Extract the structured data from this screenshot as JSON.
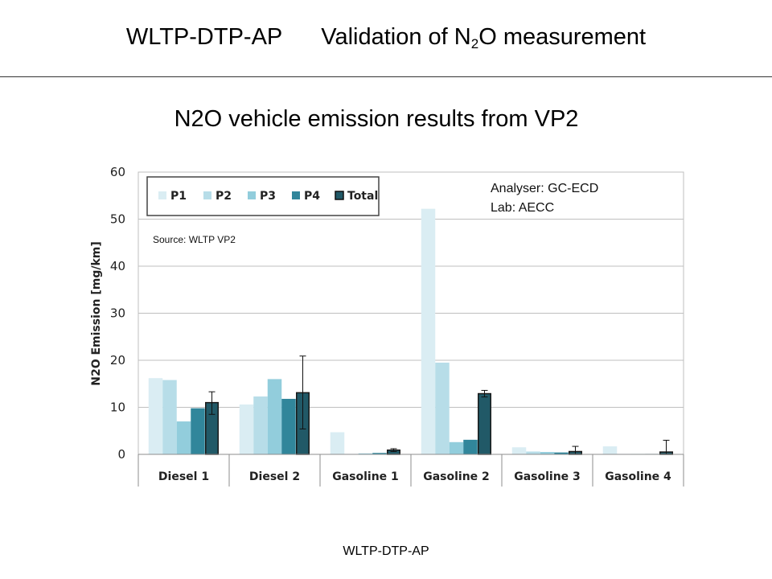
{
  "slide": {
    "title_left": "WLTP-DTP-AP",
    "title_right_pre": "Validation of N",
    "title_right_sub": "2",
    "title_right_post": "O measurement",
    "subtitle": "N2O vehicle emission results from VP2",
    "footer": "WLTP-DTP-AP"
  },
  "chart_data": {
    "type": "bar",
    "ylabel": "N2O Emission [mg/km]",
    "ylim": [
      0,
      60
    ],
    "yticks": [
      0,
      10,
      20,
      30,
      40,
      50,
      60
    ],
    "grid": true,
    "legend_position": "top-left",
    "annotations": [
      "Analyser: GC-ECD",
      "Lab: AECC"
    ],
    "source_note": "Source: WLTP VP2",
    "categories": [
      "Diesel 1",
      "Diesel 2",
      "Gasoline 1",
      "Gasoline 2",
      "Gasoline 3",
      "Gasoline 4"
    ],
    "series": [
      {
        "name": "P1",
        "color": "#daedf3",
        "values": [
          16.2,
          10.6,
          4.7,
          52.2,
          1.5,
          1.7
        ]
      },
      {
        "name": "P2",
        "color": "#b7dde8",
        "values": [
          15.8,
          12.3,
          0.1,
          19.5,
          0.6,
          0.1
        ]
      },
      {
        "name": "P3",
        "color": "#92cddc",
        "values": [
          7.0,
          16.0,
          0.2,
          2.6,
          0.5,
          0.1
        ]
      },
      {
        "name": "P4",
        "color": "#31869b",
        "values": [
          9.8,
          11.8,
          0.3,
          3.1,
          0.4,
          0.1
        ]
      },
      {
        "name": "Total",
        "color": "#215967",
        "values": [
          11.0,
          13.1,
          0.9,
          12.9,
          0.6,
          0.5
        ]
      }
    ],
    "error_bars": {
      "series": "Total",
      "low": [
        8.5,
        5.4,
        0.6,
        12.2,
        0.0,
        0.0
      ],
      "high": [
        13.3,
        20.9,
        1.2,
        13.6,
        1.7,
        3.0
      ]
    }
  }
}
